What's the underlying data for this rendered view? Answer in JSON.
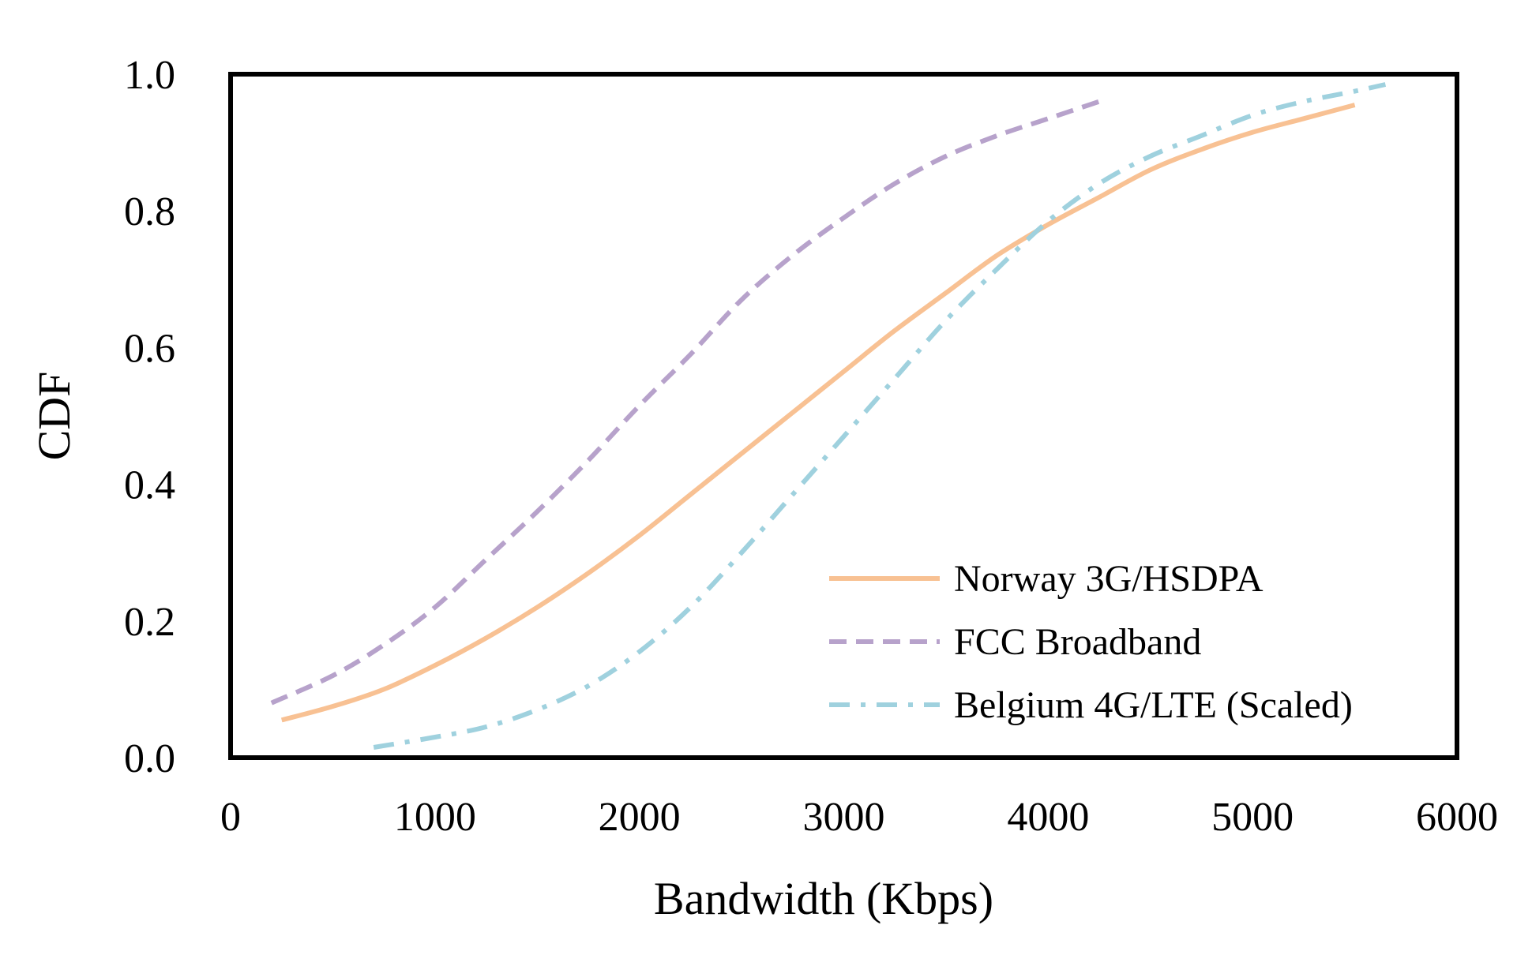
{
  "chart_data": {
    "type": "line",
    "title": "",
    "xlabel": "Bandwidth (Kbps)",
    "ylabel": "CDF",
    "xlim": [
      0,
      6000
    ],
    "ylim": [
      0,
      1
    ],
    "xticks": [
      "0",
      "1000",
      "2000",
      "3000",
      "4000",
      "5000",
      "6000"
    ],
    "yticks": [
      "0.0",
      "0.2",
      "0.4",
      "0.6",
      "0.8",
      "1.0"
    ],
    "grid": false,
    "legend_position": "bottom-right",
    "series": [
      {
        "name": "Norway 3G/HSDPA",
        "color": "#f8c193",
        "dash": "solid",
        "x": [
          250,
          500,
          750,
          1000,
          1250,
          1500,
          1750,
          2000,
          2250,
          2500,
          2750,
          3000,
          3250,
          3500,
          3750,
          4000,
          4250,
          4500,
          4750,
          5000,
          5250,
          5500
        ],
        "y": [
          0.055,
          0.075,
          0.1,
          0.135,
          0.175,
          0.22,
          0.27,
          0.325,
          0.385,
          0.445,
          0.505,
          0.565,
          0.625,
          0.68,
          0.735,
          0.78,
          0.82,
          0.86,
          0.89,
          0.915,
          0.935,
          0.955
        ]
      },
      {
        "name": "FCC Broadband",
        "color": "#b7a2cb",
        "dash": "dashed",
        "x": [
          200,
          500,
          750,
          1000,
          1250,
          1500,
          1750,
          2000,
          2250,
          2500,
          2750,
          3000,
          3250,
          3500,
          3750,
          4000,
          4250
        ],
        "y": [
          0.08,
          0.12,
          0.165,
          0.22,
          0.29,
          0.36,
          0.435,
          0.515,
          0.59,
          0.67,
          0.735,
          0.79,
          0.84,
          0.88,
          0.91,
          0.935,
          0.96
        ]
      },
      {
        "name": "Belgium 4G/LTE (Scaled)",
        "color": "#9fd1de",
        "dash": "dash-dot",
        "x": [
          700,
          1000,
          1250,
          1500,
          1750,
          2000,
          2250,
          2500,
          2750,
          3000,
          3250,
          3500,
          3750,
          4000,
          4250,
          4500,
          4750,
          5000,
          5250,
          5500,
          5650
        ],
        "y": [
          0.015,
          0.03,
          0.045,
          0.07,
          0.105,
          0.155,
          0.22,
          0.3,
          0.385,
          0.47,
          0.555,
          0.64,
          0.715,
          0.785,
          0.84,
          0.88,
          0.91,
          0.94,
          0.96,
          0.975,
          0.985
        ]
      }
    ]
  }
}
